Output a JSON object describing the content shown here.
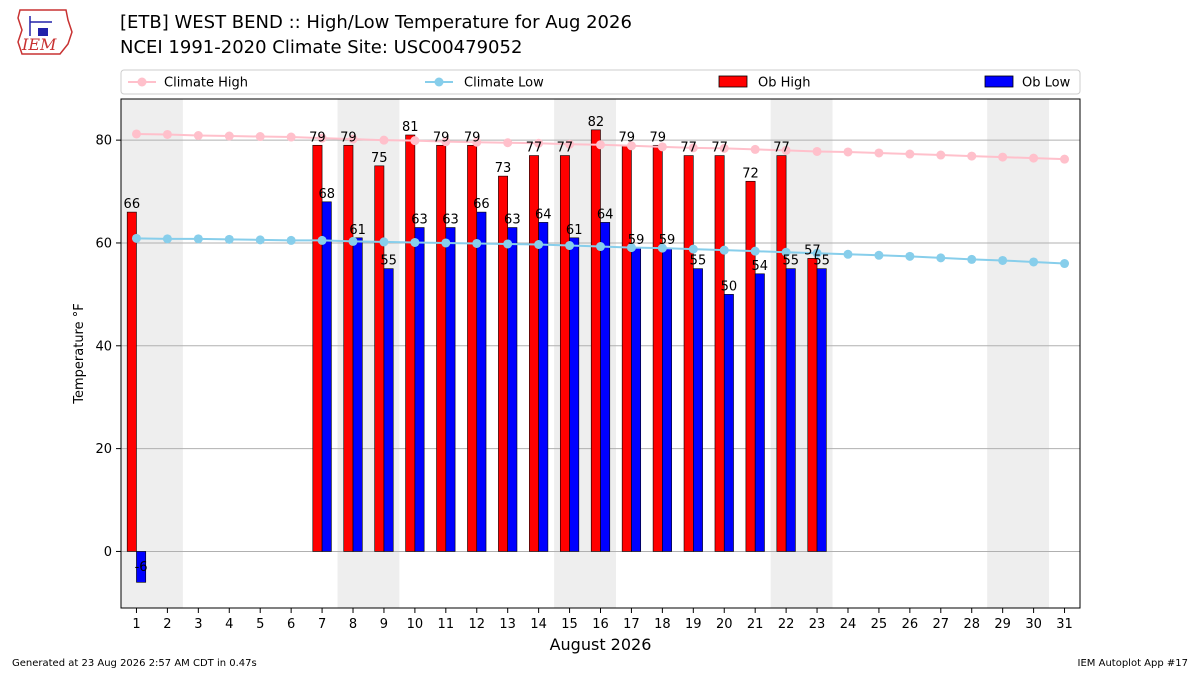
{
  "header": {
    "title": "[ETB] WEST BEND :: High/Low Temperature for Aug 2026",
    "subtitle": "NCEI 1991-2020 Climate Site: USC00479052",
    "logo_text": "IEM"
  },
  "footer": {
    "generated": "Generated at 23 Aug 2026 2:57 AM CDT in 0.47s",
    "app": "IEM Autoplot App #17"
  },
  "colors": {
    "ob_high": "#ff0000",
    "ob_low": "#0000ff",
    "climate_high": "#ffc0cb",
    "climate_low": "#87ceeb",
    "weekend_shade": "#eeeeee",
    "grid": "#b0b0b0"
  },
  "chart_data": {
    "type": "bar",
    "xlabel": "August 2026",
    "ylabel": "Temperature °F",
    "ylim": [
      -11,
      88
    ],
    "xlim": [
      0.5,
      31.5
    ],
    "grid": "horizontal",
    "legend_placement": "top",
    "yticks": [
      0,
      20,
      40,
      60,
      80
    ],
    "x": [
      1,
      2,
      3,
      4,
      5,
      6,
      7,
      8,
      9,
      10,
      11,
      12,
      13,
      14,
      15,
      16,
      17,
      18,
      19,
      20,
      21,
      22,
      23,
      24,
      25,
      26,
      27,
      28,
      29,
      30,
      31
    ],
    "shaded_weekend_ranges": [
      [
        0.5,
        2.5
      ],
      [
        7.5,
        9.5
      ],
      [
        14.5,
        16.5
      ],
      [
        21.5,
        23.5
      ],
      [
        28.5,
        30.5
      ]
    ],
    "series": [
      {
        "name": "Climate High",
        "kind": "line",
        "values": [
          81.2,
          81.1,
          80.9,
          80.8,
          80.7,
          80.6,
          80.4,
          80.2,
          80.0,
          79.9,
          79.7,
          79.6,
          79.5,
          79.4,
          79.2,
          79.1,
          78.9,
          78.7,
          78.5,
          78.4,
          78.2,
          78.0,
          77.8,
          77.7,
          77.5,
          77.3,
          77.1,
          76.9,
          76.7,
          76.5,
          76.3
        ]
      },
      {
        "name": "Climate Low",
        "kind": "line",
        "values": [
          60.9,
          60.8,
          60.8,
          60.7,
          60.6,
          60.5,
          60.5,
          60.3,
          60.2,
          60.1,
          60.0,
          59.9,
          59.8,
          59.7,
          59.5,
          59.3,
          59.1,
          59.0,
          58.8,
          58.6,
          58.4,
          58.2,
          58.0,
          57.8,
          57.6,
          57.4,
          57.1,
          56.8,
          56.6,
          56.3,
          56.0
        ]
      },
      {
        "name": "Ob High",
        "kind": "bar",
        "values": [
          66,
          null,
          null,
          null,
          null,
          null,
          79,
          79,
          75,
          81,
          79,
          79,
          73,
          77,
          77,
          82,
          79,
          79,
          77,
          77,
          72,
          77,
          57,
          null,
          null,
          null,
          null,
          null,
          null,
          null,
          null
        ]
      },
      {
        "name": "Ob Low",
        "kind": "bar",
        "values": [
          -6,
          null,
          null,
          null,
          null,
          null,
          68,
          61,
          55,
          63,
          63,
          66,
          63,
          64,
          61,
          64,
          59,
          59,
          55,
          50,
          54,
          55,
          55,
          null,
          null,
          null,
          null,
          null,
          null,
          null,
          null
        ]
      }
    ]
  }
}
